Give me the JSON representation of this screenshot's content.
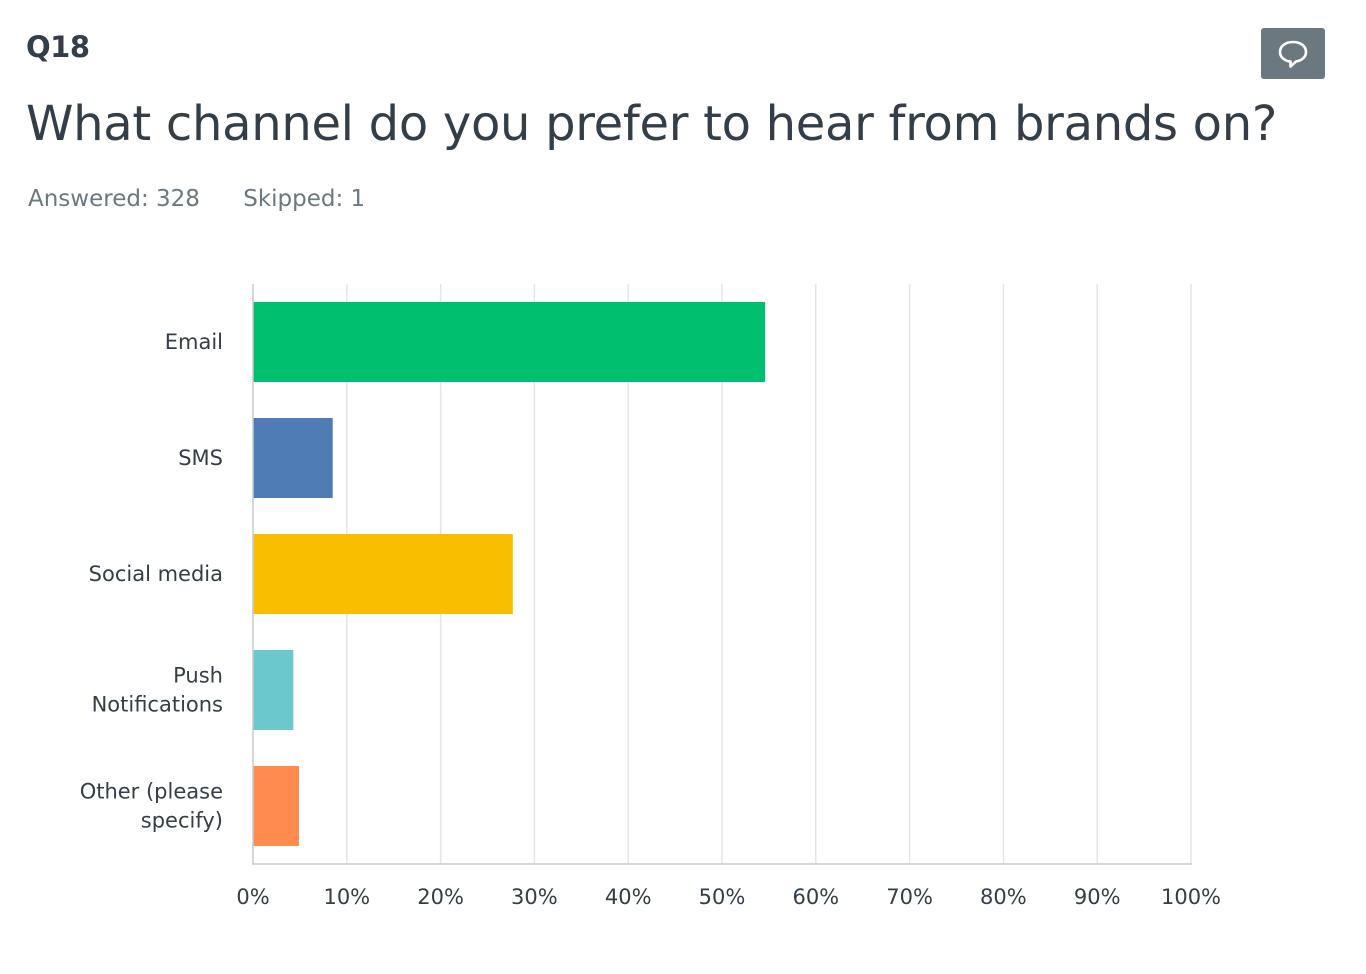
{
  "question": {
    "number": "Q18",
    "title": "What channel do you prefer to hear from brands on?",
    "answered_label": "Answered: 328",
    "skipped_label": "Skipped: 1"
  },
  "comment_button": {
    "icon": "speech-bubble-icon",
    "color": "#6b787f"
  },
  "chart_data": {
    "type": "bar",
    "orientation": "horizontal",
    "title": "What channel do you prefer to hear from brands on?",
    "xlabel": "",
    "ylabel": "",
    "categories": [
      [
        "Email"
      ],
      [
        "SMS"
      ],
      [
        "Social media"
      ],
      [
        "Push",
        "Notifications"
      ],
      [
        "Other (please",
        "specify)"
      ]
    ],
    "values": [
      54.6,
      8.5,
      27.7,
      4.3,
      4.9
    ],
    "colors": [
      "#00bf6f",
      "#507cb6",
      "#f9be00",
      "#6bc8cd",
      "#ff8b4f"
    ],
    "xlim": [
      0,
      100
    ],
    "ticks": [
      0,
      10,
      20,
      30,
      40,
      50,
      60,
      70,
      80,
      90,
      100
    ],
    "tick_labels": [
      "0%",
      "10%",
      "20%",
      "30%",
      "40%",
      "50%",
      "60%",
      "70%",
      "80%",
      "90%",
      "100%"
    ],
    "grid": true,
    "legend": "none"
  }
}
